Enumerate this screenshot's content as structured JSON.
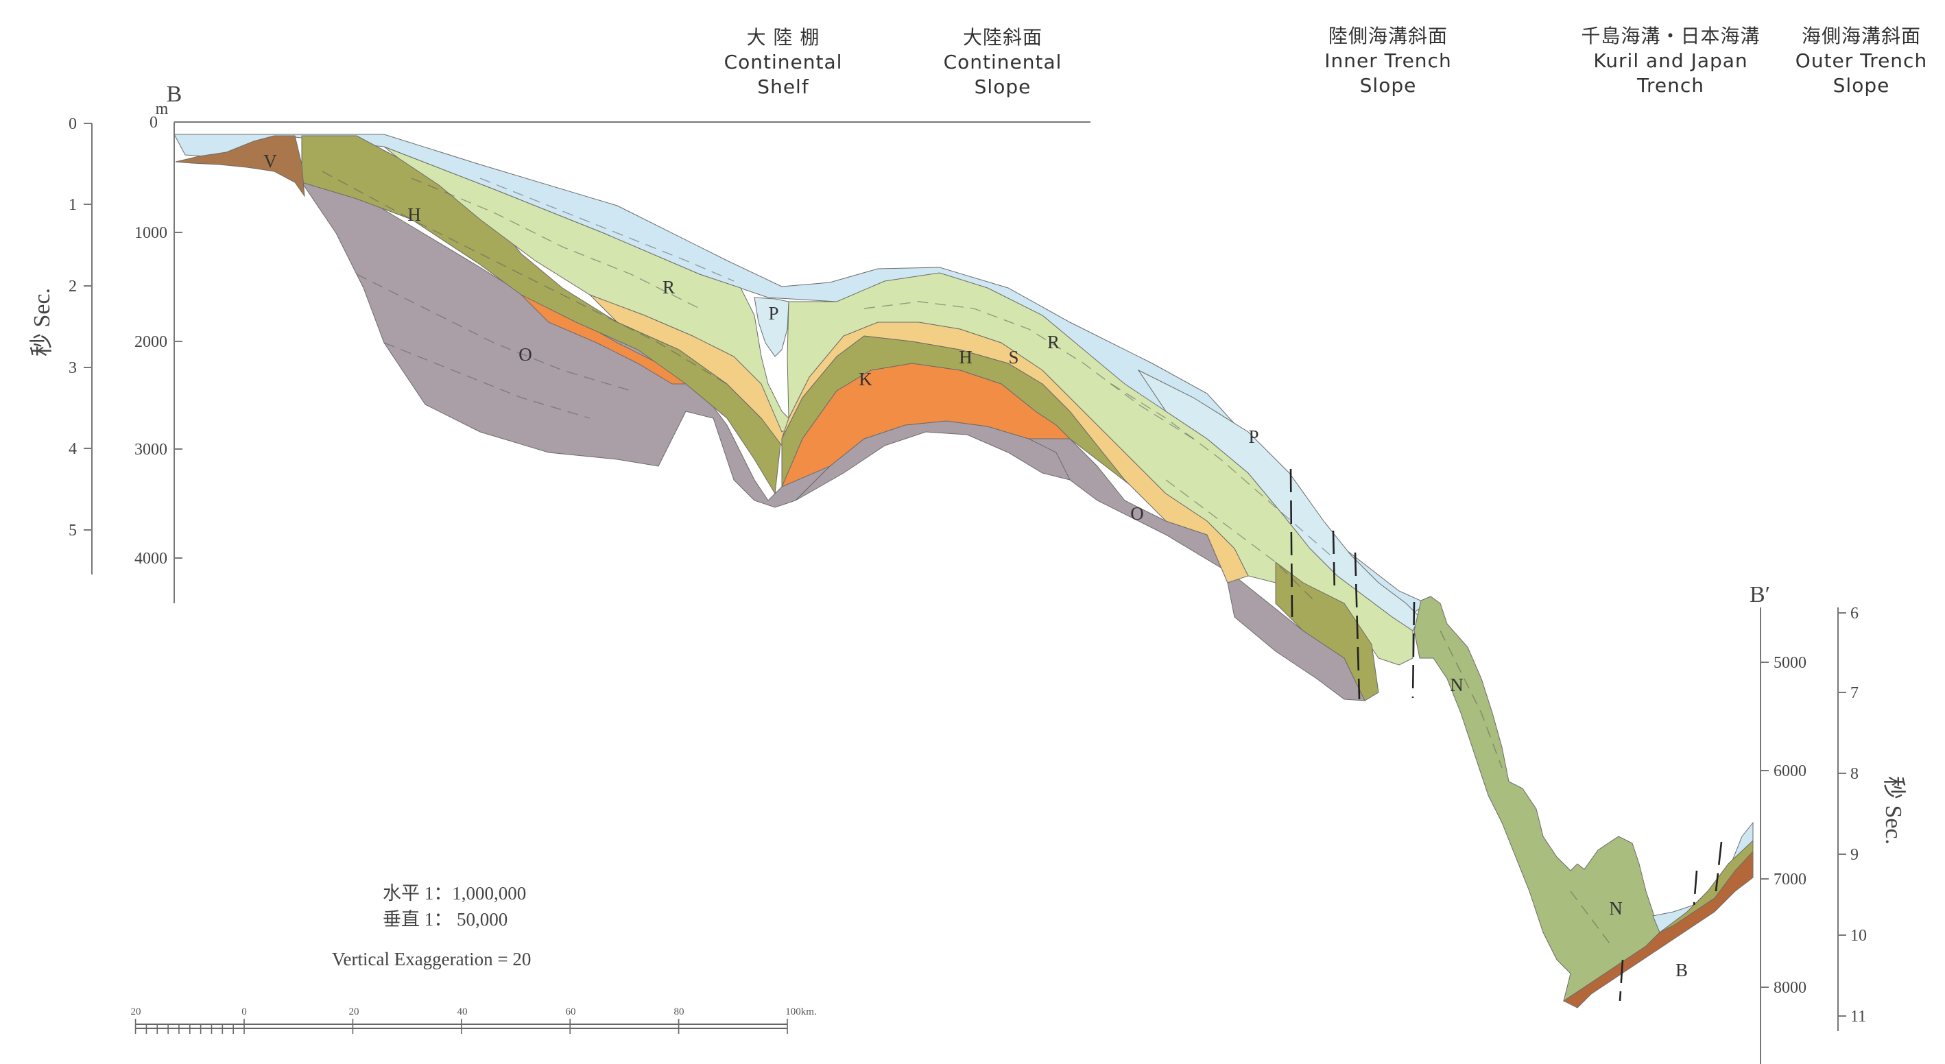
{
  "section": {
    "start_label": "B",
    "end_label": "B′",
    "depth_unit_label": "m"
  },
  "zones": [
    {
      "ja": "大 陸 棚",
      "en1": "Continental",
      "en2": "Shelf"
    },
    {
      "ja": "大陸斜面",
      "en1": "Continental",
      "en2": "Slope"
    },
    {
      "ja": "陸側海溝斜面",
      "en1": "Inner Trench",
      "en2": "Slope"
    },
    {
      "ja": "千島海溝・日本海溝",
      "en1": "Kuril  and  Japan",
      "en2": "Trench"
    },
    {
      "ja": "海側海溝斜面",
      "en1": "Outer  Trench",
      "en2": "Slope"
    }
  ],
  "axes": {
    "left_sec_label": "秒  Sec.",
    "right_sec_label": "秒  Sec.",
    "left_sec_ticks": [
      "0",
      "1",
      "2",
      "3",
      "4",
      "5"
    ],
    "left_depth_ticks": [
      "0",
      "1000",
      "2000",
      "3000",
      "4000"
    ],
    "right_depth_ticks": [
      "5000",
      "6000",
      "7000",
      "8000"
    ],
    "right_sec_ticks": [
      "6",
      "7",
      "8",
      "9",
      "10",
      "11"
    ]
  },
  "layers": {
    "V": "V",
    "H": "H",
    "R": "R",
    "P": "P",
    "O": "O",
    "K": "K",
    "S": "S",
    "N": "N",
    "B": "B"
  },
  "colors": {
    "water": "#cfe7f2",
    "P": "#d6ecf2",
    "R": "#d4e6ae",
    "S": "#f3cf85",
    "H": "#a6a85a",
    "K": "#f28d45",
    "O": "#aa9fa6",
    "V": "#a9774b",
    "N": "#a9bd7e",
    "B": "#b4683a"
  },
  "scale": {
    "horizontal": "水平  1：1,000,000",
    "vertical": "垂直  1：    50,000",
    "exaggeration": "Vertical  Exaggeration  =  20",
    "bar_labels": [
      "20",
      "0",
      "20",
      "40",
      "60",
      "80",
      "100km."
    ]
  }
}
